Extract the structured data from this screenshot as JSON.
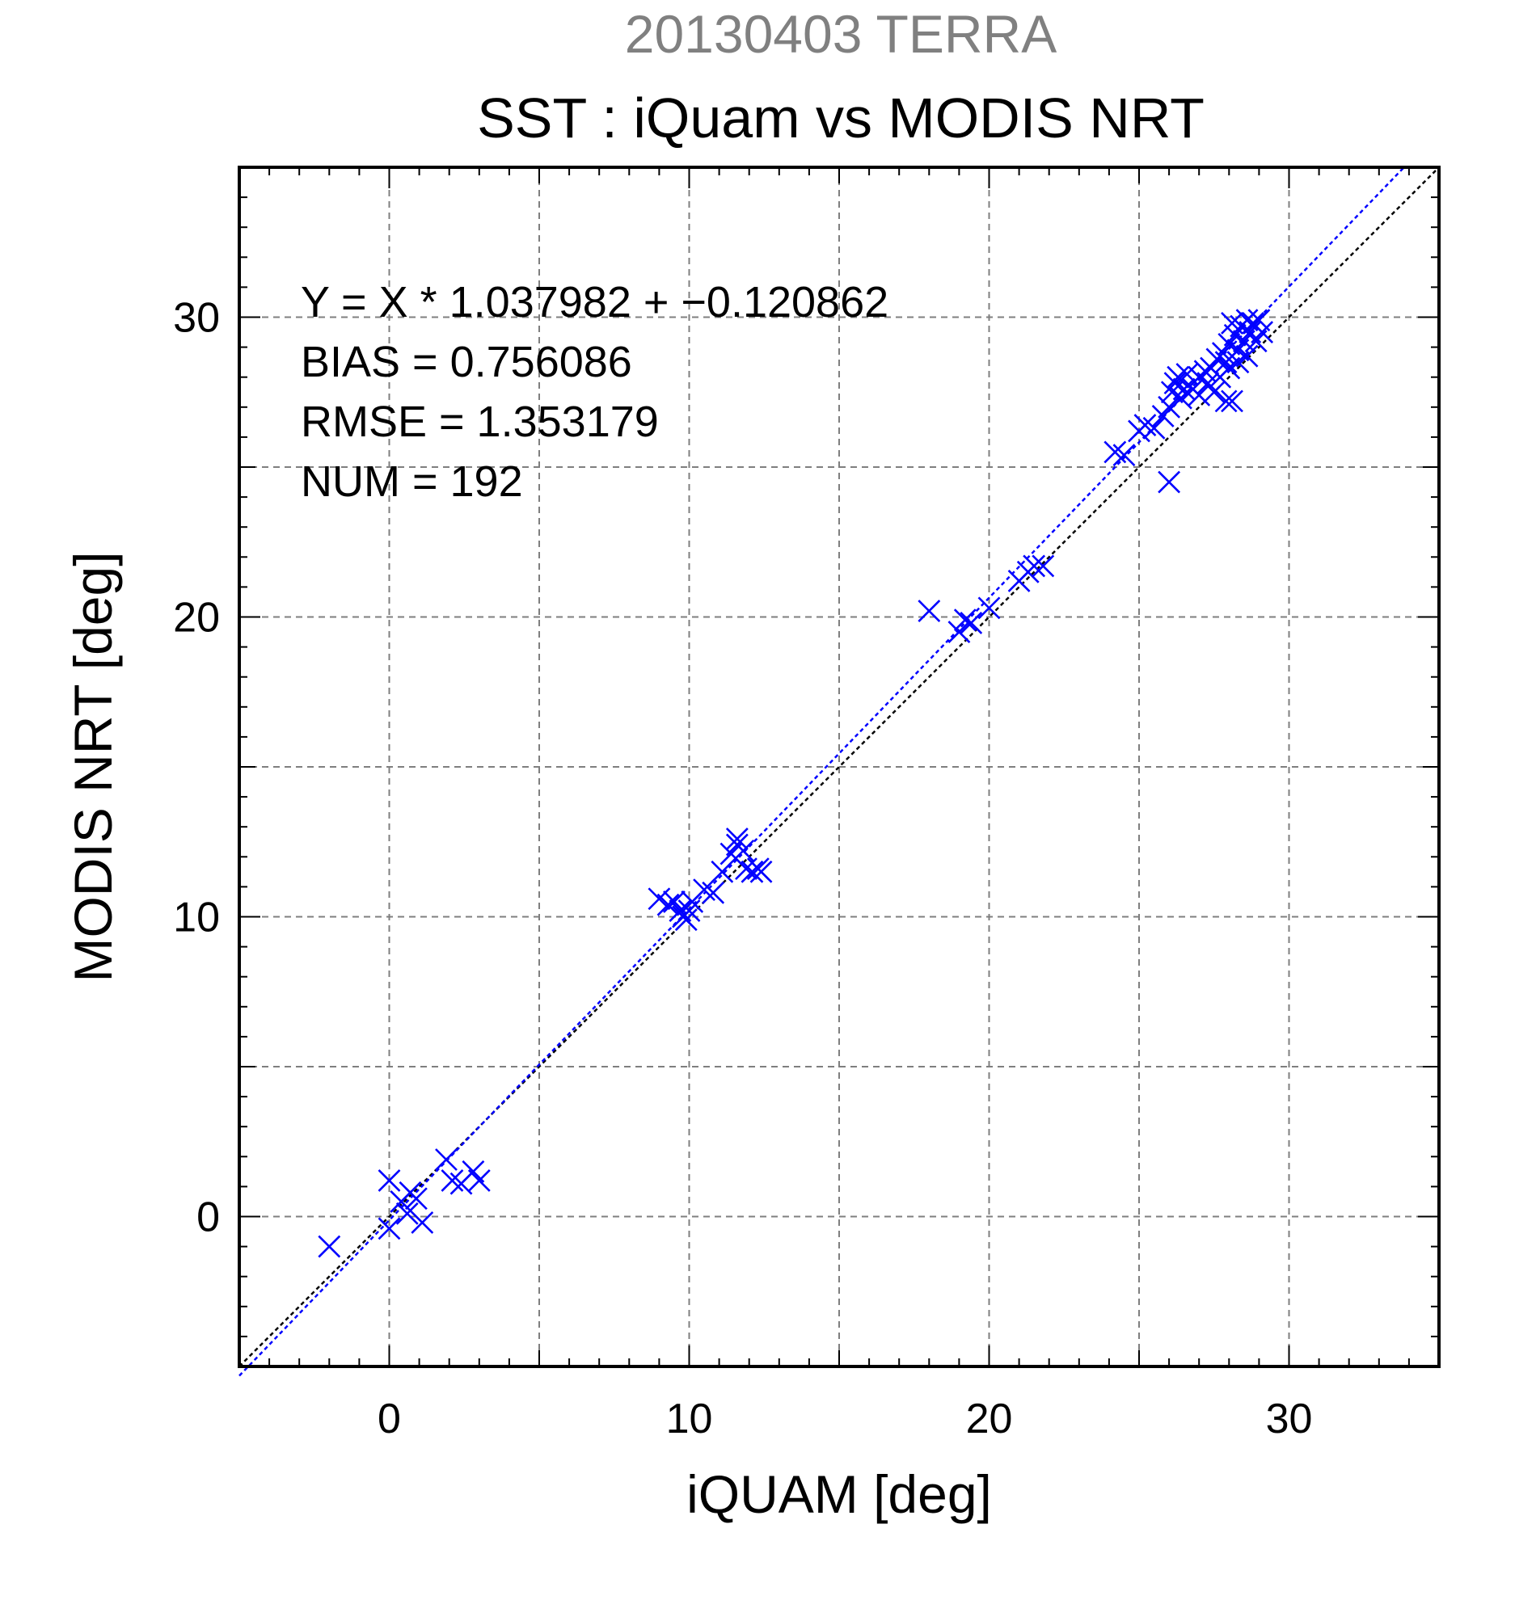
{
  "chart_data": {
    "type": "scatter",
    "title_date": "20130403 TERRA",
    "title": "SST : iQuam vs MODIS NRT",
    "xlabel": "iQUAM [deg]",
    "ylabel": "MODIS NRT [deg]",
    "xlim": [
      -5,
      35
    ],
    "ylim": [
      -5,
      35
    ],
    "x_ticks": [
      0,
      10,
      20,
      30
    ],
    "y_ticks": [
      0,
      10,
      20,
      30
    ],
    "x_tick_labels": [
      "0",
      "10",
      "20",
      "30"
    ],
    "y_tick_labels": [
      "0",
      "10",
      "20",
      "30"
    ],
    "grid": true,
    "stats": [
      "Y = X * 1.037982 + −0.120862",
      "BIAS = 0.756086",
      "RMSE = 1.353179",
      "NUM = 192"
    ],
    "fit": {
      "slope": 1.037982,
      "intercept": -0.120862
    },
    "series": [
      {
        "marker": "x",
        "color": "#0000ff",
        "points": [
          [
            -2.0,
            -1.0
          ],
          [
            0.0,
            -0.4
          ],
          [
            0.0,
            1.2
          ],
          [
            0.4,
            0.5
          ],
          [
            0.6,
            0.1
          ],
          [
            0.7,
            0.8
          ],
          [
            0.9,
            0.6
          ],
          [
            1.1,
            -0.2
          ],
          [
            1.9,
            1.9
          ],
          [
            2.1,
            1.2
          ],
          [
            2.4,
            1.1
          ],
          [
            2.8,
            1.5
          ],
          [
            3.0,
            1.2
          ],
          [
            9.0,
            10.6
          ],
          [
            9.3,
            10.4
          ],
          [
            9.5,
            10.5
          ],
          [
            9.7,
            10.2
          ],
          [
            9.8,
            10.0
          ],
          [
            9.9,
            9.9
          ],
          [
            10.0,
            10.2
          ],
          [
            10.1,
            10.5
          ],
          [
            10.5,
            10.9
          ],
          [
            10.8,
            10.8
          ],
          [
            11.1,
            11.5
          ],
          [
            11.4,
            12.1
          ],
          [
            11.6,
            12.6
          ],
          [
            11.6,
            12.4
          ],
          [
            11.8,
            12.2
          ],
          [
            11.9,
            11.6
          ],
          [
            12.1,
            11.5
          ],
          [
            12.3,
            11.6
          ],
          [
            12.4,
            11.5
          ],
          [
            18.0,
            20.2
          ],
          [
            19.0,
            19.5
          ],
          [
            19.2,
            19.9
          ],
          [
            19.4,
            19.8
          ],
          [
            20.0,
            20.3
          ],
          [
            21.0,
            21.2
          ],
          [
            21.3,
            21.5
          ],
          [
            21.5,
            21.7
          ],
          [
            21.8,
            21.7
          ],
          [
            24.2,
            25.5
          ],
          [
            24.5,
            25.4
          ],
          [
            25.0,
            26.2
          ],
          [
            25.2,
            26.4
          ],
          [
            25.5,
            26.3
          ],
          [
            25.8,
            26.7
          ],
          [
            26.0,
            24.5
          ],
          [
            26.0,
            27.0
          ],
          [
            26.1,
            27.5
          ],
          [
            26.2,
            27.8
          ],
          [
            26.3,
            28.0
          ],
          [
            26.4,
            27.3
          ],
          [
            26.5,
            27.6
          ],
          [
            26.6,
            28.1
          ],
          [
            26.8,
            27.6
          ],
          [
            27.0,
            28.0
          ],
          [
            27.0,
            27.4
          ],
          [
            27.2,
            28.2
          ],
          [
            27.3,
            27.8
          ],
          [
            27.4,
            28.3
          ],
          [
            27.5,
            27.5
          ],
          [
            27.6,
            28.6
          ],
          [
            27.7,
            28.0
          ],
          [
            27.8,
            28.8
          ],
          [
            27.9,
            27.2
          ],
          [
            28.0,
            29.1
          ],
          [
            28.0,
            28.3
          ],
          [
            28.1,
            27.2
          ],
          [
            28.2,
            29.4
          ],
          [
            28.3,
            28.9
          ],
          [
            28.4,
            29.7
          ],
          [
            28.5,
            29.2
          ],
          [
            28.6,
            29.9
          ],
          [
            28.6,
            28.7
          ],
          [
            28.7,
            29.5
          ],
          [
            28.8,
            29.8
          ],
          [
            28.9,
            29.2
          ],
          [
            29.0,
            29.9
          ],
          [
            29.1,
            29.5
          ],
          [
            28.3,
            28.5
          ],
          [
            27.9,
            28.5
          ],
          [
            28.1,
            29.8
          ]
        ]
      }
    ]
  }
}
